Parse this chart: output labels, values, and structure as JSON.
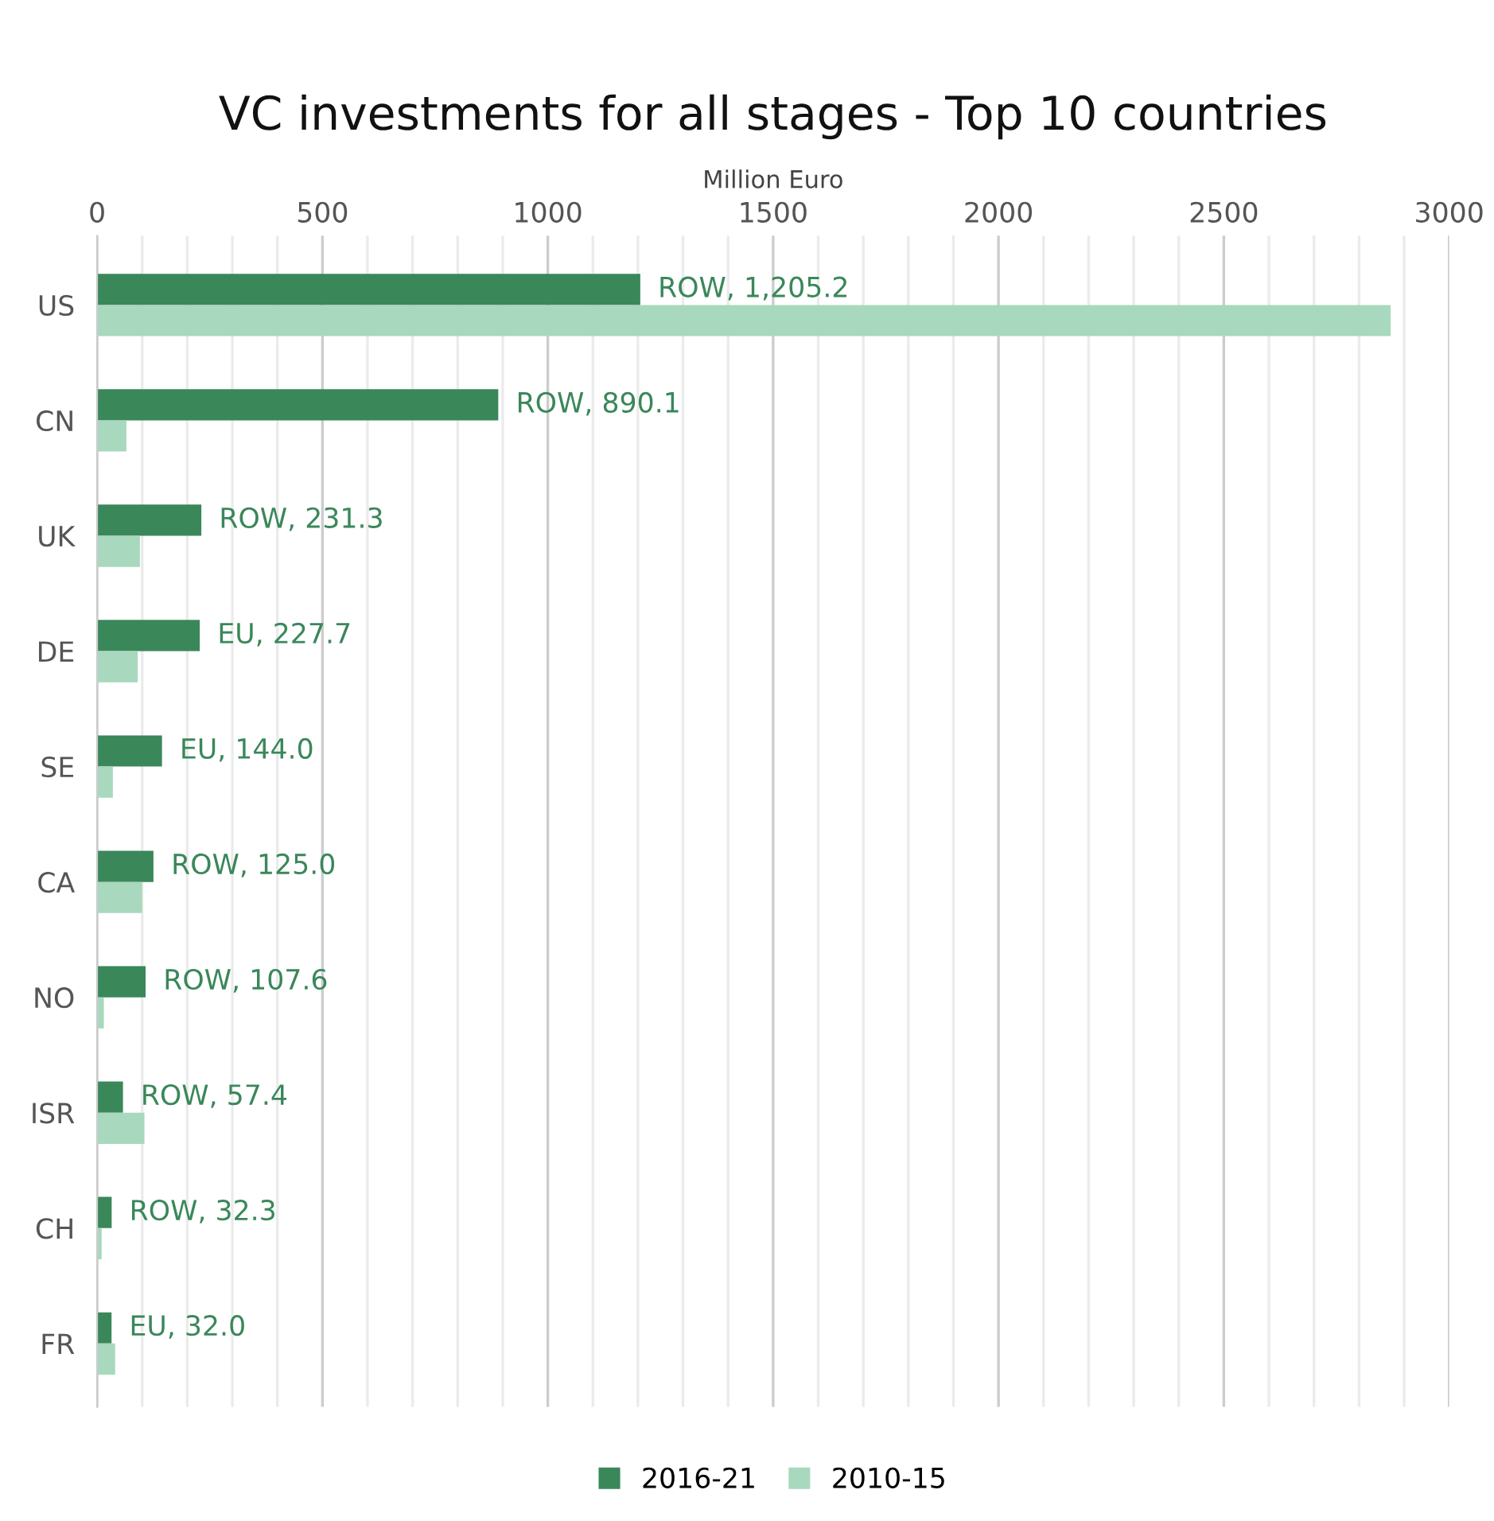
{
  "chart_data": {
    "type": "bar",
    "orientation": "horizontal",
    "title": "VC investments for all stages - Top 10 countries",
    "xlabel": "Million Euro",
    "categories": [
      "US",
      "CN",
      "UK",
      "DE",
      "SE",
      "CA",
      "NO",
      "ISR",
      "CH",
      "FR"
    ],
    "series": [
      {
        "name": "2016-21",
        "color": "#3a875a",
        "values": [
          1205.2,
          890.1,
          231.3,
          227.7,
          144.0,
          125.0,
          107.6,
          57.4,
          32.3,
          32.0
        ],
        "value_labels": [
          "ROW, 1,205.2",
          "ROW, 890.1",
          "ROW, 231.3",
          "EU, 227.7",
          "EU, 144.0",
          "ROW, 125.0",
          "ROW, 107.6",
          "ROW, 57.4",
          "ROW, 32.3",
          "EU, 32.0"
        ]
      },
      {
        "name": "2010-15",
        "color": "#a8d8bd",
        "values": [
          2870,
          65,
          95,
          90,
          35,
          100,
          15,
          105,
          10,
          40
        ]
      }
    ],
    "xlim": [
      0,
      3000
    ],
    "xticks": [
      0,
      {
        "value": 100,
        "label": null
      },
      {
        "value": 200,
        "label": null
      },
      {
        "value": 300,
        "label": null
      },
      {
        "value": 400,
        "label": null
      },
      500,
      {
        "value": 600,
        "label": null
      },
      {
        "value": 700,
        "label": null
      },
      {
        "value": 800,
        "label": null
      },
      {
        "value": 900,
        "label": null
      },
      1000,
      {
        "value": 1100,
        "label": null
      },
      {
        "value": 1200,
        "label": null
      },
      {
        "value": 1300,
        "label": null
      },
      {
        "value": 1400,
        "label": null
      },
      1500,
      {
        "value": 1600,
        "label": null
      },
      {
        "value": 1700,
        "label": null
      },
      {
        "value": 1800,
        "label": null
      },
      {
        "value": 1900,
        "label": null
      },
      2000,
      {
        "value": 2100,
        "label": null
      },
      {
        "value": 2200,
        "label": null
      },
      {
        "value": 2300,
        "label": null
      },
      {
        "value": 2400,
        "label": null
      },
      2500,
      {
        "value": 2600,
        "label": null
      },
      {
        "value": 2700,
        "label": null
      },
      {
        "value": 2800,
        "label": null
      },
      {
        "value": 2900,
        "label": null
      },
      3000
    ],
    "grid": "x",
    "legend": "bottom"
  }
}
